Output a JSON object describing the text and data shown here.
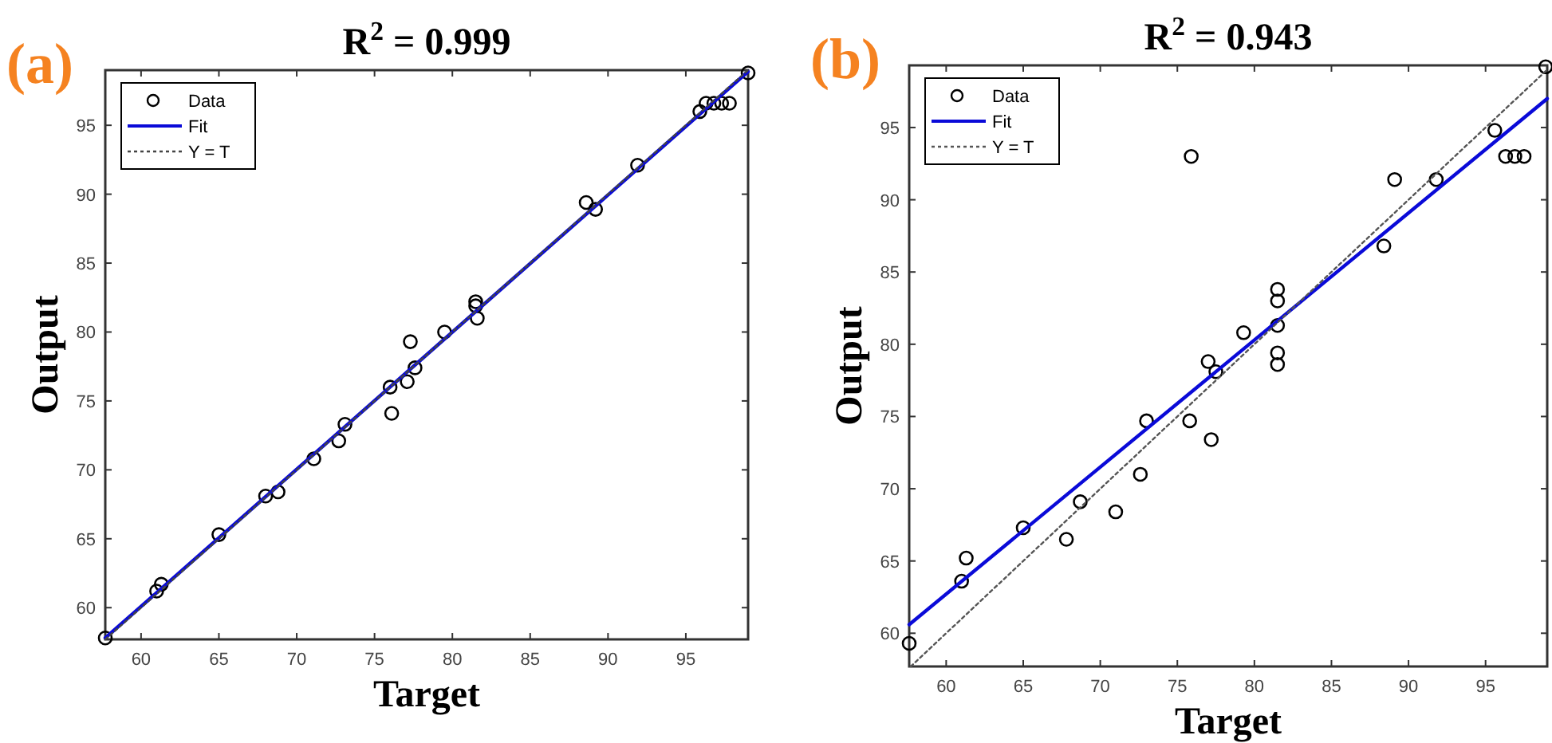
{
  "chart_data": [
    {
      "type": "scatter",
      "title": "R$^{2}$ = 0.999",
      "xlabel": "Target",
      "ylabel": "Output",
      "annotations": [
        "(a)"
      ],
      "xlim": [
        57.7,
        99
      ],
      "ylim": [
        57.7,
        99
      ],
      "xticks": [
        60,
        65,
        70,
        75,
        80,
        85,
        90,
        95
      ],
      "yticks": [
        60,
        65,
        70,
        75,
        80,
        85,
        90,
        95
      ],
      "legend": "top left",
      "series": [
        {
          "name": "Data",
          "type": "scatter",
          "marker": "circle",
          "color": "#000000",
          "x": [
            57.7,
            61,
            61.3,
            65,
            68,
            68.8,
            71.1,
            72.7,
            73.1,
            76,
            76.1,
            77.1,
            77.3,
            77.6,
            79.5,
            81.5,
            81.5,
            81.6,
            88.6,
            89.2,
            91.9,
            95.9,
            96.3,
            96.8,
            97.3,
            97.8,
            99
          ],
          "values": [
            57.8,
            61.2,
            61.7,
            65.3,
            68.1,
            68.4,
            70.8,
            72.1,
            73.3,
            76,
            74.1,
            76.4,
            79.3,
            77.4,
            80,
            82.2,
            81.9,
            81,
            89.4,
            88.9,
            92.1,
            96,
            96.6,
            96.6,
            96.6,
            96.6,
            98.8
          ]
        },
        {
          "name": "Fit",
          "type": "line",
          "line_style": "solid",
          "color": "#0a0ad8",
          "x": [
            57.7,
            99
          ],
          "values": [
            57.8,
            98.9
          ]
        },
        {
          "name": "Y = T",
          "type": "line",
          "line_style": "dotted",
          "color": "#444444",
          "x": [
            57.7,
            99
          ],
          "values": [
            57.7,
            99
          ]
        }
      ]
    },
    {
      "type": "scatter",
      "title": "R$^{2}$ = 0.943",
      "xlabel": "Target",
      "ylabel": "Output",
      "annotations": [
        "(b)"
      ],
      "xlim": [
        57.6,
        99
      ],
      "ylim": [
        57.7,
        99.3
      ],
      "xticks": [
        60,
        65,
        70,
        75,
        80,
        85,
        90,
        95
      ],
      "yticks": [
        60,
        65,
        70,
        75,
        80,
        85,
        90,
        95
      ],
      "legend": "top left",
      "series": [
        {
          "name": "Data",
          "type": "scatter",
          "marker": "circle",
          "color": "#000000",
          "x": [
            57.6,
            61,
            61.3,
            65,
            67.8,
            68.7,
            71,
            72.6,
            73,
            75.8,
            77.2,
            77,
            77.5,
            79.3,
            81.5,
            81.5,
            81.5,
            81.5,
            81.5,
            75.9,
            88.4,
            89.1,
            91.8,
            95.6,
            96.3,
            96.9,
            97.5,
            98.9
          ],
          "values": [
            59.3,
            63.6,
            65.2,
            67.3,
            66.5,
            69.1,
            68.4,
            71,
            74.7,
            74.7,
            73.4,
            78.8,
            78.1,
            80.8,
            83.8,
            83,
            81.3,
            79.4,
            78.6,
            93,
            86.8,
            91.4,
            91.4,
            94.8,
            93,
            93,
            93,
            99.2
          ]
        },
        {
          "name": "Fit",
          "type": "line",
          "line_style": "solid",
          "color": "#0a0ad8",
          "x": [
            57.6,
            99
          ],
          "values": [
            60.6,
            97
          ]
        },
        {
          "name": "Y = T",
          "type": "line",
          "line_style": "dotted",
          "color": "#555555",
          "x": [
            57.7,
            99
          ],
          "values": [
            57.7,
            99
          ]
        }
      ]
    }
  ]
}
